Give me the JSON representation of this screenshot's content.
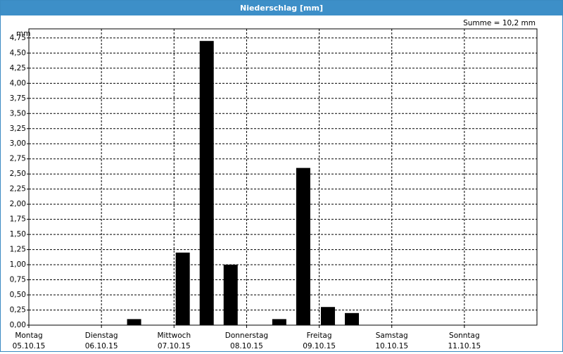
{
  "chart_data": {
    "type": "bar",
    "title": "Niederschlag [mm]",
    "annotation": "Summe = 10,2 mm",
    "y_unit": "mm",
    "x": [
      1.45,
      2.12,
      2.45,
      2.78,
      3.45,
      3.78,
      4.12,
      4.45
    ],
    "values": [
      0.1,
      1.2,
      4.7,
      1.0,
      0.1,
      2.6,
      0.3,
      0.2
    ],
    "color": "#000000",
    "xlim": [
      0,
      7
    ],
    "xticks": [
      {
        "value": 0,
        "label": "05.10.15"
      },
      {
        "value": 1,
        "label": "06.10.15"
      },
      {
        "value": 2,
        "label": "07.10.15"
      },
      {
        "value": 3,
        "label": "08.10.15"
      },
      {
        "value": 4,
        "label": "09.10.15"
      },
      {
        "value": 5,
        "label": "10.10.15"
      },
      {
        "value": 6,
        "label": "11.10.15"
      }
    ],
    "weekdays": [
      "Montag",
      "Dienstag",
      "Mittwoch",
      "Donnerstag",
      "Freitag",
      "Samstag",
      "Sonntag"
    ],
    "ylim": [
      0,
      4.9
    ],
    "yticks": [
      {
        "value": 0,
        "label": "0,00"
      },
      {
        "value": 0.25,
        "label": "0,25"
      },
      {
        "value": 0.5,
        "label": "0,50"
      },
      {
        "value": 0.75,
        "label": "0,75"
      },
      {
        "value": 1,
        "label": "1,00"
      },
      {
        "value": 1.25,
        "label": "1,25"
      },
      {
        "value": 1.5,
        "label": "1,50"
      },
      {
        "value": 1.75,
        "label": "1,75"
      },
      {
        "value": 2,
        "label": "2,00"
      },
      {
        "value": 2.25,
        "label": "2,25"
      },
      {
        "value": 2.5,
        "label": "2,50"
      },
      {
        "value": 2.75,
        "label": "2,75"
      },
      {
        "value": 3,
        "label": "3,00"
      },
      {
        "value": 3.25,
        "label": "3,25"
      },
      {
        "value": 3.5,
        "label": "3,50"
      },
      {
        "value": 3.75,
        "label": "3,75"
      },
      {
        "value": 4,
        "label": "4,00"
      },
      {
        "value": 4.25,
        "label": "4,25"
      },
      {
        "value": 4.5,
        "label": "4,50"
      },
      {
        "value": 4.75,
        "label": "4,75"
      }
    ],
    "grid": true
  }
}
